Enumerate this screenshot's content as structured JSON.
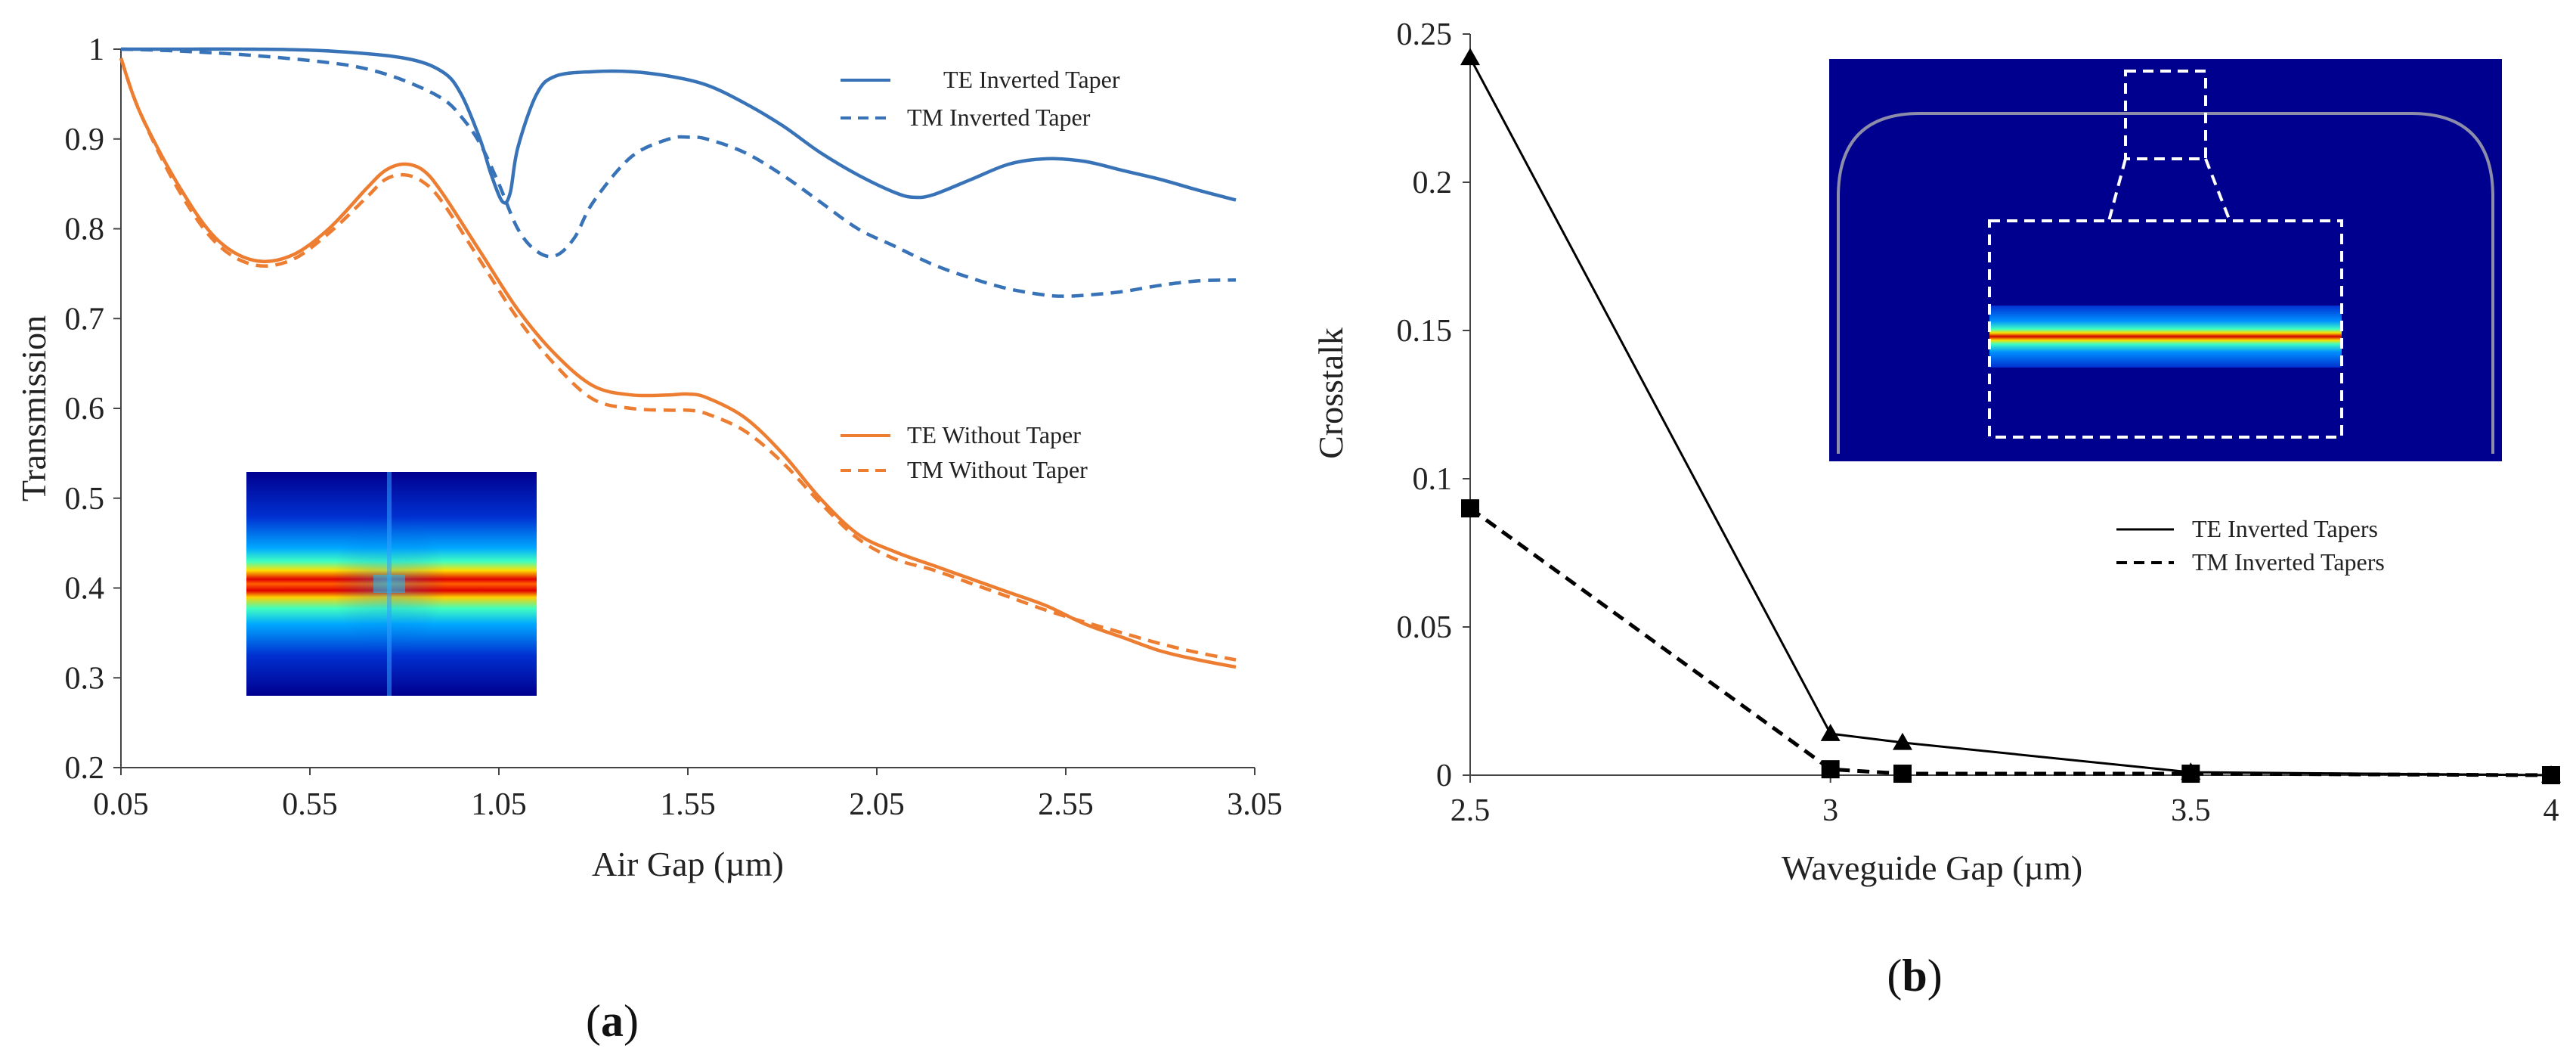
{
  "chart_data": [
    {
      "type": "line",
      "panel": "a",
      "caption_open": "(",
      "caption_letter": "a",
      "caption_close": ")",
      "xlabel": "Air Gap (µm)",
      "ylabel": "Transmission",
      "xlim": [
        0.05,
        3.05
      ],
      "ylim": [
        0.2,
        1.0
      ],
      "xticks": [
        "0.05",
        "0.55",
        "1.05",
        "1.55",
        "2.05",
        "2.55",
        "3.05"
      ],
      "yticks": [
        "0.2",
        "0.3",
        "0.4",
        "0.5",
        "0.6",
        "0.7",
        "0.8",
        "0.9",
        "1"
      ],
      "grid": false,
      "inset": "field intensity map (low → high)",
      "series": [
        {
          "name": "TE Inverted Taper",
          "color": "#3873b8",
          "dash": "solid",
          "x": [
            0.05,
            0.2,
            0.4,
            0.6,
            0.8,
            0.9,
            0.95,
            1.0,
            1.03,
            1.06,
            1.08,
            1.1,
            1.15,
            1.2,
            1.3,
            1.4,
            1.5,
            1.6,
            1.7,
            1.8,
            1.9,
            2.0,
            2.1,
            2.15,
            2.2,
            2.3,
            2.4,
            2.5,
            2.6,
            2.7,
            2.8,
            2.9,
            3.0
          ],
          "y": [
            1.0,
            1.0,
            1.0,
            0.998,
            0.99,
            0.975,
            0.95,
            0.9,
            0.86,
            0.83,
            0.84,
            0.89,
            0.95,
            0.97,
            0.975,
            0.975,
            0.97,
            0.96,
            0.94,
            0.915,
            0.885,
            0.86,
            0.84,
            0.835,
            0.838,
            0.855,
            0.872,
            0.878,
            0.875,
            0.865,
            0.855,
            0.843,
            0.832
          ]
        },
        {
          "name": "TM Inverted Taper",
          "color": "#3873b8",
          "dash": "dashed",
          "x": [
            0.05,
            0.2,
            0.4,
            0.6,
            0.7,
            0.8,
            0.9,
            0.95,
            1.0,
            1.05,
            1.1,
            1.15,
            1.2,
            1.25,
            1.3,
            1.4,
            1.5,
            1.55,
            1.6,
            1.7,
            1.8,
            1.9,
            2.0,
            2.1,
            2.2,
            2.3,
            2.4,
            2.5,
            2.55,
            2.6,
            2.7,
            2.8,
            2.9,
            3.0
          ],
          "y": [
            1.0,
            0.998,
            0.993,
            0.985,
            0.978,
            0.965,
            0.945,
            0.925,
            0.895,
            0.85,
            0.8,
            0.775,
            0.77,
            0.79,
            0.83,
            0.88,
            0.9,
            0.902,
            0.9,
            0.885,
            0.86,
            0.83,
            0.8,
            0.78,
            0.76,
            0.745,
            0.733,
            0.726,
            0.725,
            0.726,
            0.73,
            0.737,
            0.742,
            0.743
          ]
        },
        {
          "name": "TE Without Taper",
          "color": "#ed7d31",
          "dash": "solid",
          "x": [
            0.05,
            0.1,
            0.2,
            0.3,
            0.4,
            0.5,
            0.6,
            0.7,
            0.75,
            0.8,
            0.85,
            0.9,
            1.0,
            1.1,
            1.2,
            1.3,
            1.4,
            1.5,
            1.55,
            1.6,
            1.7,
            1.8,
            1.9,
            2.0,
            2.1,
            2.2,
            2.3,
            2.4,
            2.5,
            2.6,
            2.7,
            2.8,
            2.9,
            3.0
          ],
          "y": [
            0.99,
            0.93,
            0.85,
            0.79,
            0.765,
            0.77,
            0.8,
            0.845,
            0.865,
            0.872,
            0.865,
            0.84,
            0.775,
            0.71,
            0.66,
            0.625,
            0.615,
            0.615,
            0.616,
            0.612,
            0.59,
            0.55,
            0.5,
            0.46,
            0.44,
            0.425,
            0.41,
            0.395,
            0.38,
            0.36,
            0.345,
            0.33,
            0.32,
            0.312
          ]
        },
        {
          "name": "TM Without Taper",
          "color": "#ed7d31",
          "dash": "dashed",
          "x": [
            0.05,
            0.1,
            0.2,
            0.3,
            0.4,
            0.5,
            0.6,
            0.7,
            0.75,
            0.8,
            0.85,
            0.9,
            1.0,
            1.1,
            1.2,
            1.3,
            1.4,
            1.5,
            1.55,
            1.6,
            1.7,
            1.8,
            1.9,
            2.0,
            2.1,
            2.2,
            2.3,
            2.4,
            2.5,
            2.6,
            2.7,
            2.8,
            2.9,
            3.0
          ],
          "y": [
            0.99,
            0.93,
            0.845,
            0.785,
            0.76,
            0.765,
            0.795,
            0.835,
            0.855,
            0.86,
            0.852,
            0.83,
            0.765,
            0.7,
            0.648,
            0.61,
            0.6,
            0.598,
            0.598,
            0.594,
            0.575,
            0.54,
            0.495,
            0.455,
            0.432,
            0.42,
            0.405,
            0.39,
            0.375,
            0.362,
            0.35,
            0.338,
            0.328,
            0.32
          ]
        }
      ]
    },
    {
      "type": "line",
      "panel": "b",
      "caption_open": "(",
      "caption_letter": "b",
      "caption_close": ")",
      "xlabel": "Waveguide Gap (µm)",
      "ylabel": "Crosstalk",
      "xlim": [
        2.5,
        4.0
      ],
      "ylim": [
        0,
        0.25
      ],
      "xticks": [
        "2.5",
        "3",
        "3.5",
        "4"
      ],
      "yticks": [
        "0",
        "0.05",
        "0.1",
        "0.15",
        "0.2",
        "0.25"
      ],
      "grid": false,
      "inset": "waveguide mode profile with zoomed region",
      "series": [
        {
          "name": "TE Inverted Tapers",
          "color": "#000000",
          "dash": "solid",
          "marker": "triangle",
          "x": [
            2.5,
            3.0,
            3.1,
            3.5,
            4.0
          ],
          "y": [
            0.242,
            0.014,
            0.011,
            0.001,
            0.0
          ]
        },
        {
          "name": "TM Inverted Tapers",
          "color": "#000000",
          "dash": "dashed",
          "marker": "square",
          "x": [
            2.5,
            3.0,
            3.1,
            3.5,
            4.0
          ],
          "y": [
            0.09,
            0.002,
            0.0005,
            0.0005,
            0.0
          ]
        }
      ]
    }
  ]
}
